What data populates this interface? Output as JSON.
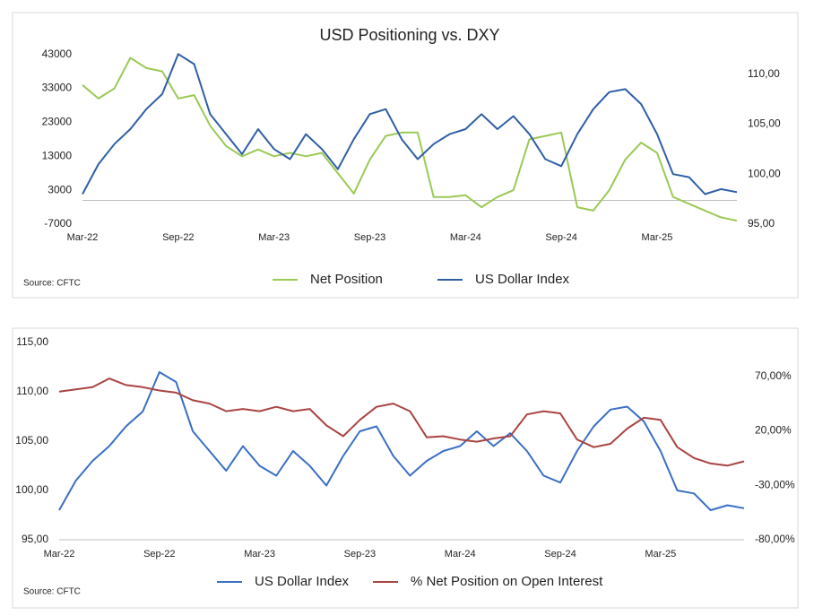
{
  "chart_data": [
    {
      "type": "line",
      "title": "USD Positioning vs. DXY",
      "source": "Source: CFTC",
      "categories": [
        "Mar-22",
        null,
        null,
        null,
        null,
        null,
        "Sep-22",
        null,
        null,
        null,
        null,
        null,
        "Mar-23",
        null,
        null,
        null,
        null,
        null,
        "Sep-23",
        null,
        null,
        null,
        null,
        null,
        "Mar-24",
        null,
        null,
        null,
        null,
        null,
        "Sep-24",
        null,
        null,
        null,
        null,
        null,
        "Mar-25",
        null,
        null,
        null,
        null,
        null
      ],
      "ylim": [
        -7000,
        49000
      ],
      "yticks": [
        -7000,
        3000,
        13000,
        23000,
        33000,
        43000
      ],
      "y2lim": [
        95,
        114
      ],
      "y2ticks": [
        {
          "value": 95,
          "label": "95,00"
        },
        {
          "value": 100,
          "label": "100,00"
        },
        {
          "value": 105,
          "label": "105,00"
        },
        {
          "value": 110,
          "label": "110,00"
        }
      ],
      "series": [
        {
          "name": "Net Position",
          "color": "#9bc955",
          "values": [
            34000,
            30000,
            33000,
            42000,
            39000,
            38000,
            30000,
            31000,
            22000,
            16000,
            13000,
            15000,
            13000,
            14000,
            13000,
            14000,
            8000,
            2000,
            12000,
            19000,
            20000,
            20000,
            1000,
            1000,
            1500,
            -2000,
            1000,
            3000,
            18000,
            19000,
            20000,
            -2000,
            -3000,
            3000,
            12000,
            17000,
            14000,
            1000,
            -1000,
            -3000,
            -5000,
            -6000
          ]
        },
        {
          "name": "US Dollar Index",
          "color": "#2f5fa6",
          "axis": "y2",
          "values": [
            98,
            101,
            103,
            104.5,
            106.5,
            108,
            112,
            111,
            106,
            104,
            102,
            104.5,
            102.5,
            101.5,
            104,
            102.5,
            100.5,
            103.5,
            106,
            106.5,
            103.5,
            101.5,
            103,
            104,
            104.5,
            106,
            104.5,
            105.8,
            104,
            101.5,
            100.8,
            104,
            106.5,
            108.2,
            108.5,
            107,
            104,
            100,
            99.7,
            98,
            98.5,
            98.2
          ]
        }
      ]
    },
    {
      "type": "line",
      "source": "Source: CFTC",
      "categories": [
        "Mar-22",
        null,
        null,
        null,
        null,
        null,
        "Sep-22",
        null,
        null,
        null,
        null,
        null,
        "Mar-23",
        null,
        null,
        null,
        null,
        null,
        "Sep-23",
        null,
        null,
        null,
        null,
        null,
        "Mar-24",
        null,
        null,
        null,
        null,
        null,
        "Sep-24",
        null,
        null,
        null,
        null,
        null,
        "Mar-25",
        null,
        null,
        null,
        null,
        null
      ],
      "ylim": [
        95,
        115
      ],
      "yticks": [
        {
          "value": 95,
          "label": "95,00"
        },
        {
          "value": 100,
          "label": "100,00"
        },
        {
          "value": 105,
          "label": "105,00"
        },
        {
          "value": 110,
          "label": "110,00"
        },
        {
          "value": 115,
          "label": "115,00"
        }
      ],
      "y2lim": [
        -80,
        101
      ],
      "y2ticks": [
        {
          "value": -80,
          "label": "-80,00%"
        },
        {
          "value": -30,
          "label": "-30,00%"
        },
        {
          "value": 20,
          "label": "20,00%"
        },
        {
          "value": 70,
          "label": "70,00%"
        }
      ],
      "series": [
        {
          "name": "US Dollar Index",
          "color": "#3a6fc4",
          "values": [
            98,
            101,
            103,
            104.5,
            106.5,
            108,
            112,
            111,
            106,
            104,
            102,
            104.5,
            102.5,
            101.5,
            104,
            102.5,
            100.5,
            103.5,
            106,
            106.5,
            103.5,
            101.5,
            103,
            104,
            104.5,
            106,
            104.5,
            105.8,
            104,
            101.5,
            100.8,
            104,
            106.5,
            108.2,
            108.5,
            107,
            104,
            100,
            99.7,
            98,
            98.5,
            98.2
          ]
        },
        {
          "name": "% Net Position on Open Interest",
          "color": "#a94442",
          "axis": "y2",
          "values": [
            56,
            58,
            60,
            68,
            62,
            60,
            57,
            55,
            48,
            45,
            38,
            40,
            38,
            42,
            38,
            40,
            25,
            15,
            30,
            42,
            45,
            38,
            14,
            15,
            12,
            10,
            13,
            15,
            35,
            38,
            36,
            12,
            5,
            8,
            22,
            32,
            30,
            5,
            -5,
            -10,
            -12,
            -8
          ]
        }
      ]
    }
  ]
}
